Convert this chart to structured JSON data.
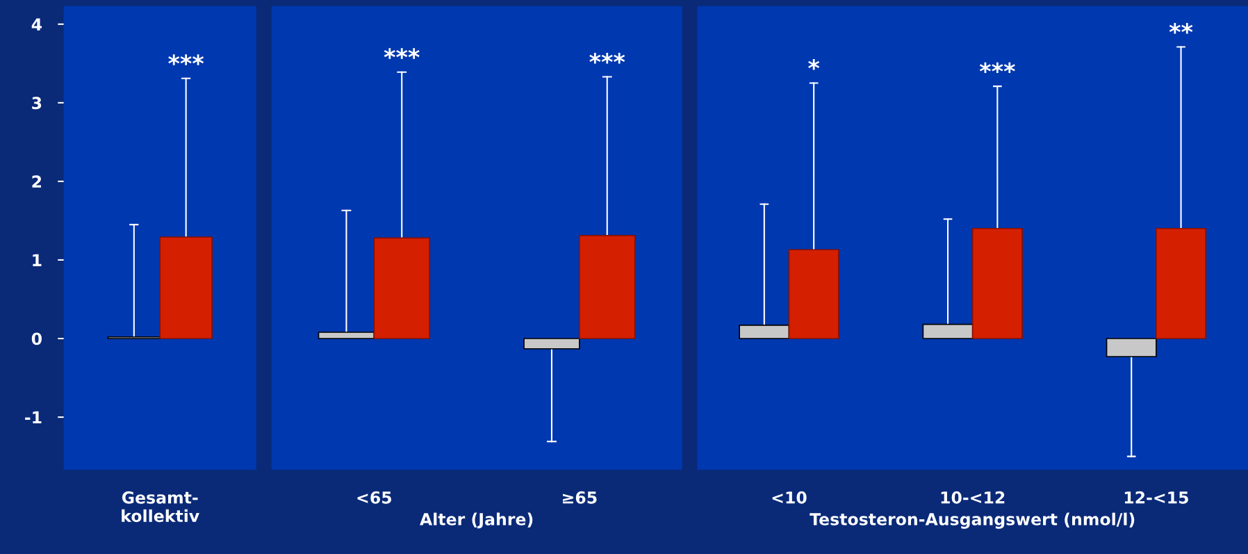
{
  "chart_data": [
    {
      "type": "bar",
      "categories": [
        "Gesamt-\nkollektiv"
      ],
      "ylim": [
        -1.67,
        4.23
      ],
      "yticks": [
        -1,
        0,
        1,
        2,
        3,
        4
      ],
      "grid": false,
      "legend": false,
      "series": [
        {
          "color": "#c8c8c8",
          "values": [
            0.02
          ],
          "errors": [
            [
              0.02,
              1.45
            ]
          ]
        },
        {
          "color": "#d42000",
          "values": [
            1.29
          ],
          "errors": [
            [
              1.29,
              3.31
            ]
          ]
        }
      ],
      "annotations": [
        "***"
      ]
    },
    {
      "type": "bar",
      "categories": [
        "<65",
        "≥65"
      ],
      "xlabel": "Alter (Jahre)",
      "ylim": [
        -1.67,
        4.23
      ],
      "tick_labels": "x",
      "grid": false,
      "legend": false,
      "series": [
        {
          "color": "#c8c8c8",
          "values": [
            0.08,
            -0.13
          ],
          "errors": [
            [
              0.08,
              1.63
            ],
            [
              -1.31,
              -0.13
            ]
          ]
        },
        {
          "color": "#d42000",
          "values": [
            1.28,
            1.31
          ],
          "errors": [
            [
              1.28,
              3.39
            ],
            [
              1.31,
              3.33
            ]
          ]
        }
      ],
      "annotations": [
        "***",
        "***"
      ]
    },
    {
      "type": "bar",
      "categories": [
        "<10",
        "10-<12",
        "12-<15"
      ],
      "xlabel": "Testosteron-Ausgangswert (nmol/l)",
      "ylim": [
        -1.67,
        4.23
      ],
      "tick_labels": "x",
      "grid": false,
      "legend": false,
      "series": [
        {
          "color": "#c8c8c8",
          "values": [
            0.17,
            0.18,
            -0.23
          ],
          "errors": [
            [
              0.17,
              1.71
            ],
            [
              0.18,
              1.52
            ],
            [
              -1.5,
              -0.23
            ]
          ]
        },
        {
          "color": "#d42000",
          "values": [
            1.13,
            1.4,
            1.4
          ],
          "errors": [
            [
              1.13,
              3.25
            ],
            [
              1.4,
              3.21
            ],
            [
              1.4,
              3.71
            ]
          ]
        }
      ],
      "annotations": [
        "*",
        "***",
        "**"
      ]
    }
  ]
}
